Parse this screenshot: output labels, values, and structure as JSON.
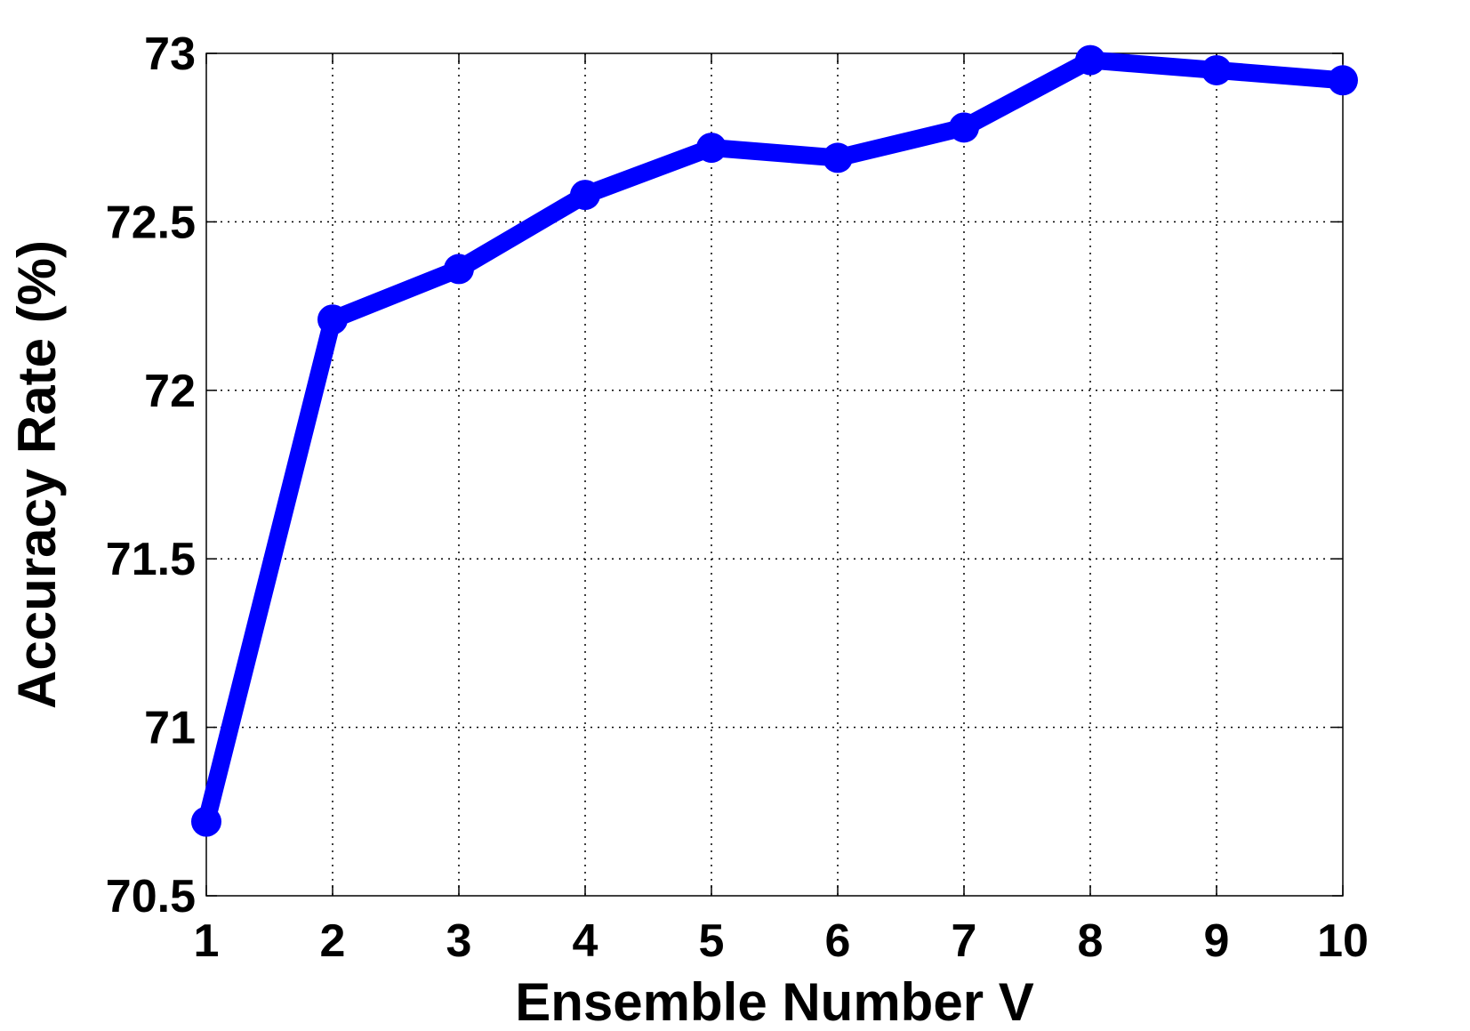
{
  "chart_data": {
    "type": "line",
    "xlabel": "Ensemble Number V",
    "ylabel": "Accuracy Rate (%)",
    "xlim": [
      1,
      10
    ],
    "ylim": [
      70.5,
      73
    ],
    "x_ticks": [
      "1",
      "2",
      "3",
      "4",
      "5",
      "6",
      "7",
      "8",
      "9",
      "10"
    ],
    "y_ticks": [
      "70.5",
      "71",
      "71.5",
      "72",
      "72.5",
      "73"
    ],
    "grid": true,
    "series": [
      {
        "color": "#0000ff",
        "marker": "circle",
        "x": [
          1,
          2,
          3,
          4,
          5,
          6,
          7,
          8,
          9,
          10
        ],
        "y": [
          70.72,
          72.21,
          72.36,
          72.58,
          72.72,
          72.69,
          72.78,
          72.98,
          72.95,
          72.92
        ]
      }
    ]
  }
}
